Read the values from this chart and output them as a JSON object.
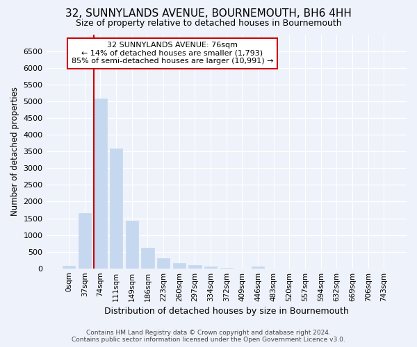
{
  "title": "32, SUNNYLANDS AVENUE, BOURNEMOUTH, BH6 4HH",
  "subtitle": "Size of property relative to detached houses in Bournemouth",
  "xlabel": "Distribution of detached houses by size in Bournemouth",
  "ylabel": "Number of detached properties",
  "footer_line1": "Contains HM Land Registry data © Crown copyright and database right 2024.",
  "footer_line2": "Contains public sector information licensed under the Open Government Licence v3.0.",
  "property_label": "32 SUNNYLANDS AVENUE: 76sqm",
  "annotation_line2": "← 14% of detached houses are smaller (1,793)",
  "annotation_line3": "85% of semi-detached houses are larger (10,991) →",
  "bar_color": "#c5d8f0",
  "bar_edge_color": "#c5d8f0",
  "vline_color": "#cc0000",
  "annotation_box_color": "#cc0000",
  "background_color": "#eef2fa",
  "grid_color": "#ffffff",
  "categories": [
    "0sqm",
    "37sqm",
    "74sqm",
    "111sqm",
    "149sqm",
    "186sqm",
    "223sqm",
    "260sqm",
    "297sqm",
    "334sqm",
    "372sqm",
    "409sqm",
    "446sqm",
    "483sqm",
    "520sqm",
    "557sqm",
    "594sqm",
    "632sqm",
    "669sqm",
    "706sqm",
    "743sqm"
  ],
  "values": [
    70,
    1660,
    5080,
    3590,
    1420,
    620,
    300,
    150,
    90,
    55,
    10,
    0,
    65,
    0,
    0,
    0,
    0,
    0,
    0,
    0,
    0
  ],
  "ylim": [
    0,
    7000
  ],
  "yticks": [
    0,
    500,
    1000,
    1500,
    2000,
    2500,
    3000,
    3500,
    4000,
    4500,
    5000,
    5500,
    6000,
    6500
  ],
  "vline_bar_index": 2,
  "figsize": [
    6.0,
    5.0
  ],
  "dpi": 100
}
